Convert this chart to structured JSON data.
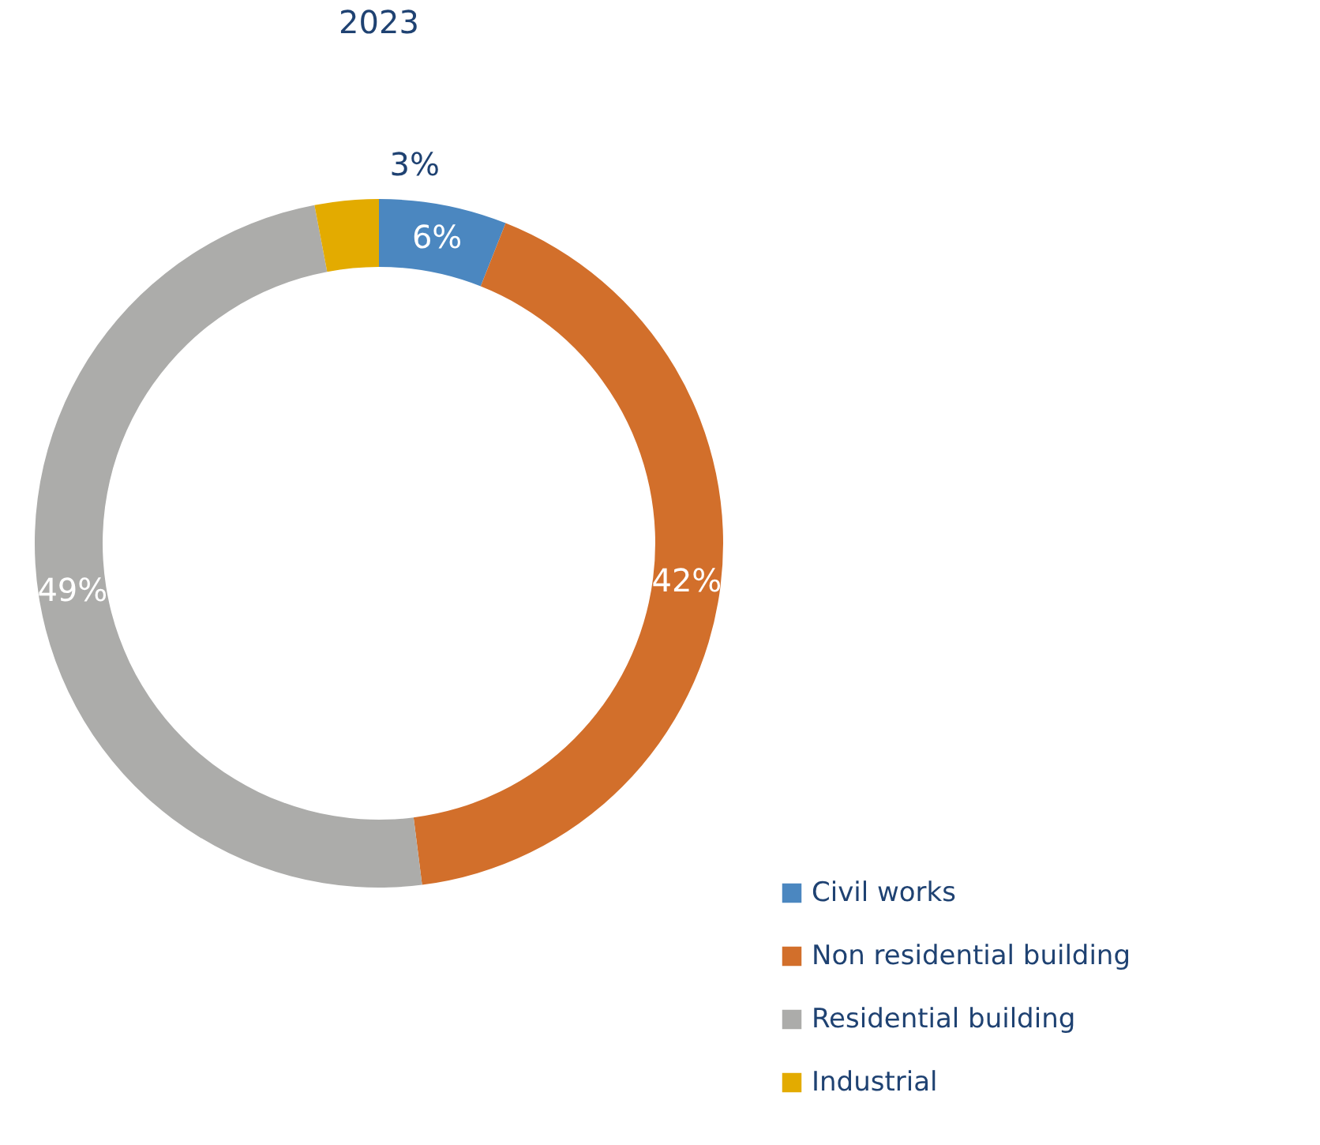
{
  "chart_data": {
    "type": "donut",
    "title": "2023",
    "categories": [
      "Civil works",
      "Non residential building",
      "Residential building",
      "Industrial"
    ],
    "values": [
      6,
      42,
      49,
      3
    ],
    "colors": [
      "#4b87c0",
      "#d26f2b",
      "#acacaa",
      "#e3ab00"
    ],
    "value_labels": [
      "6%",
      "42%",
      "49%",
      "3%"
    ],
    "legend": "bottom right"
  }
}
